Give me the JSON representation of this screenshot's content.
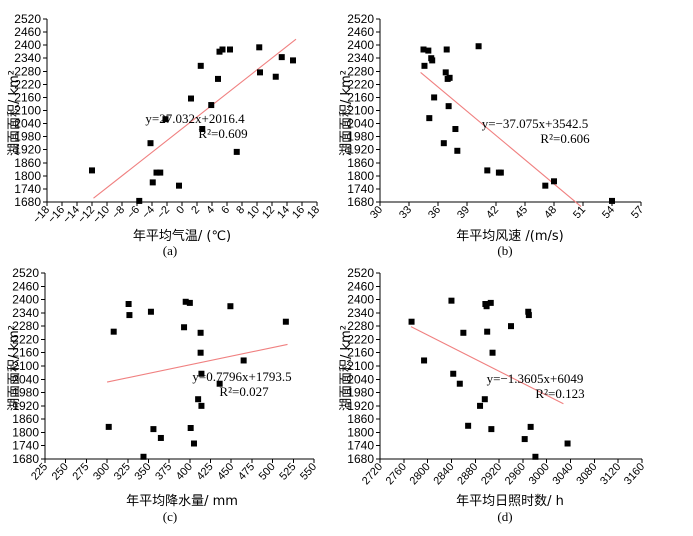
{
  "trend_color": "#f08080",
  "chart_data": [
    {
      "id": "a",
      "type": "scatter",
      "panel_label": "(a)",
      "xlabel": "年平均气温/ (℃)",
      "ylabel": "湖面面积/ km²",
      "xlim": [
        -18,
        18
      ],
      "ylim": [
        1680,
        2520
      ],
      "xticks": [
        -18,
        -16,
        -14,
        -12,
        -10,
        -8,
        -6,
        -4,
        -2,
        0,
        2,
        4,
        6,
        8,
        10,
        12,
        14,
        16,
        18
      ],
      "xtick_labels": [
        "−18",
        "−16",
        "−14",
        "−12",
        "−10",
        "−8",
        "−6",
        "−4",
        "−2",
        "0",
        "2",
        "4",
        "6",
        "8",
        "10",
        "12",
        "14",
        "16",
        "18"
      ],
      "yticks": [
        1680,
        1740,
        1800,
        1860,
        1920,
        1980,
        2040,
        2100,
        2160,
        2220,
        2280,
        2340,
        2400,
        2460,
        2520
      ],
      "trend": {
        "slope": 27.032,
        "intercept": 2016.4,
        "x_range": [
          -11.8,
          15.2
        ]
      },
      "equation": "y=27.032x+2016.4",
      "r2": "R²=0.609",
      "points": [
        [
          -12,
          1825
        ],
        [
          -5.7,
          1685
        ],
        [
          -4.2,
          1950
        ],
        [
          -3.9,
          1770
        ],
        [
          -3.4,
          1815
        ],
        [
          -2.9,
          1815
        ],
        [
          -2.2,
          2060
        ],
        [
          -0.4,
          1755
        ],
        [
          1.2,
          2155
        ],
        [
          2.5,
          2305
        ],
        [
          2.7,
          2015
        ],
        [
          3.9,
          2125
        ],
        [
          4.8,
          2245
        ],
        [
          5.0,
          2370
        ],
        [
          5.4,
          2380
        ],
        [
          6.4,
          2380
        ],
        [
          7.3,
          1910
        ],
        [
          10.3,
          2390
        ],
        [
          10.4,
          2275
        ],
        [
          12.5,
          2255
        ],
        [
          13.3,
          2345
        ],
        [
          14.8,
          2330
        ]
      ]
    },
    {
      "id": "b",
      "type": "scatter",
      "panel_label": "(b)",
      "xlabel": "年平均风速 /(m/s)",
      "ylabel": "湖面面积/ km²",
      "xlim": [
        30,
        57
      ],
      "ylim": [
        1680,
        2520
      ],
      "xticks": [
        30,
        33,
        36,
        39,
        42,
        45,
        48,
        51,
        54,
        57
      ],
      "xtick_labels": [
        "30",
        "33",
        "36",
        "39",
        "42",
        "45",
        "48",
        "51",
        "54",
        "57"
      ],
      "yticks": [
        1680,
        1740,
        1800,
        1860,
        1920,
        1980,
        2040,
        2100,
        2160,
        2220,
        2280,
        2340,
        2400,
        2460,
        2520
      ],
      "trend": {
        "slope": -37.075,
        "intercept": 3542.5,
        "x_range": [
          34.2,
          50.8
        ]
      },
      "equation": "y=−37.075x+3542.5",
      "r2": "R²=0.606",
      "points": [
        [
          34.5,
          2380
        ],
        [
          34.6,
          2305
        ],
        [
          35.0,
          2375
        ],
        [
          35.3,
          2340
        ],
        [
          35.4,
          2330
        ],
        [
          35.6,
          2160
        ],
        [
          35.1,
          2065
        ],
        [
          36.8,
          2275
        ],
        [
          37.0,
          2245
        ],
        [
          37.2,
          2250
        ],
        [
          37.1,
          2120
        ],
        [
          36.9,
          2380
        ],
        [
          37.8,
          2015
        ],
        [
          38.0,
          1915
        ],
        [
          36.6,
          1950
        ],
        [
          40.2,
          2395
        ],
        [
          41.1,
          1825
        ],
        [
          42.3,
          1815
        ],
        [
          42.5,
          1815
        ],
        [
          47.1,
          1755
        ],
        [
          48.0,
          1775
        ],
        [
          54.0,
          1685
        ]
      ]
    },
    {
      "id": "c",
      "type": "scatter",
      "panel_label": "(c)",
      "xlabel": "年平均降水量/ mm",
      "ylabel": "湖面面积/ km²",
      "xlim": [
        225,
        550
      ],
      "ylim": [
        1680,
        2520
      ],
      "xticks": [
        225,
        250,
        275,
        300,
        325,
        350,
        375,
        400,
        425,
        450,
        475,
        500,
        525,
        550
      ],
      "xtick_labels": [
        "225",
        "250",
        "275",
        "300",
        "325",
        "350",
        "375",
        "400",
        "425",
        "450",
        "475",
        "500",
        "525",
        "550"
      ],
      "yticks": [
        1680,
        1740,
        1800,
        1860,
        1920,
        1980,
        2040,
        2100,
        2160,
        2220,
        2280,
        2340,
        2400,
        2460,
        2520
      ],
      "trend": {
        "slope": 0.7796,
        "intercept": 1793.5,
        "x_range": [
          300,
          518
        ]
      },
      "equation": "y=0.7796x+1793.5",
      "r2": "R²=0.027",
      "points": [
        [
          302,
          1825
        ],
        [
          308,
          2255
        ],
        [
          326,
          2380
        ],
        [
          327,
          2330
        ],
        [
          344,
          1690
        ],
        [
          353,
          2345
        ],
        [
          356,
          1815
        ],
        [
          365,
          1775
        ],
        [
          393,
          2275
        ],
        [
          395,
          2390
        ],
        [
          400,
          2385
        ],
        [
          401,
          1820
        ],
        [
          405,
          1750
        ],
        [
          410,
          1950
        ],
        [
          413,
          2250
        ],
        [
          413,
          2160
        ],
        [
          414,
          2065
        ],
        [
          414,
          1920
        ],
        [
          436,
          2020
        ],
        [
          449,
          2370
        ],
        [
          465,
          2125
        ],
        [
          516,
          2300
        ]
      ]
    },
    {
      "id": "d",
      "type": "scatter",
      "panel_label": "(d)",
      "xlabel": "年平均日照时数/ h",
      "ylabel": "湖面面积/ km²",
      "xlim": [
        2720,
        3160
      ],
      "ylim": [
        1680,
        2520
      ],
      "xticks": [
        2720,
        2760,
        2800,
        2840,
        2880,
        2920,
        2960,
        3000,
        3040,
        3080,
        3120,
        3160
      ],
      "xtick_labels": [
        "2720",
        "2760",
        "2800",
        "2840",
        "2880",
        "2920",
        "2960",
        "3000",
        "3040",
        "3080",
        "3120",
        "3160"
      ],
      "yticks": [
        1680,
        1740,
        1800,
        1860,
        1920,
        1980,
        2040,
        2100,
        2160,
        2220,
        2280,
        2340,
        2400,
        2460,
        2520
      ],
      "trend": {
        "slope": -1.3605,
        "intercept": 6049,
        "x_range": [
          2772,
          3028
        ]
      },
      "equation": "y=−1.3605x+6049",
      "r2": "R²=0.123",
      "points": [
        [
          2773,
          2300
        ],
        [
          2794,
          2125
        ],
        [
          2840,
          2395
        ],
        [
          2843,
          2065
        ],
        [
          2854,
          2020
        ],
        [
          2860,
          2250
        ],
        [
          2868,
          1830
        ],
        [
          2888,
          1920
        ],
        [
          2896,
          1950
        ],
        [
          2897,
          2380
        ],
        [
          2899,
          2370
        ],
        [
          2900,
          2255
        ],
        [
          2906,
          2385
        ],
        [
          2907,
          1815
        ],
        [
          2909,
          2160
        ],
        [
          2940,
          2280
        ],
        [
          2963,
          1770
        ],
        [
          2969,
          2345
        ],
        [
          2970,
          2330
        ],
        [
          2973,
          1825
        ],
        [
          2981,
          1690
        ],
        [
          3035,
          1750
        ]
      ]
    }
  ]
}
